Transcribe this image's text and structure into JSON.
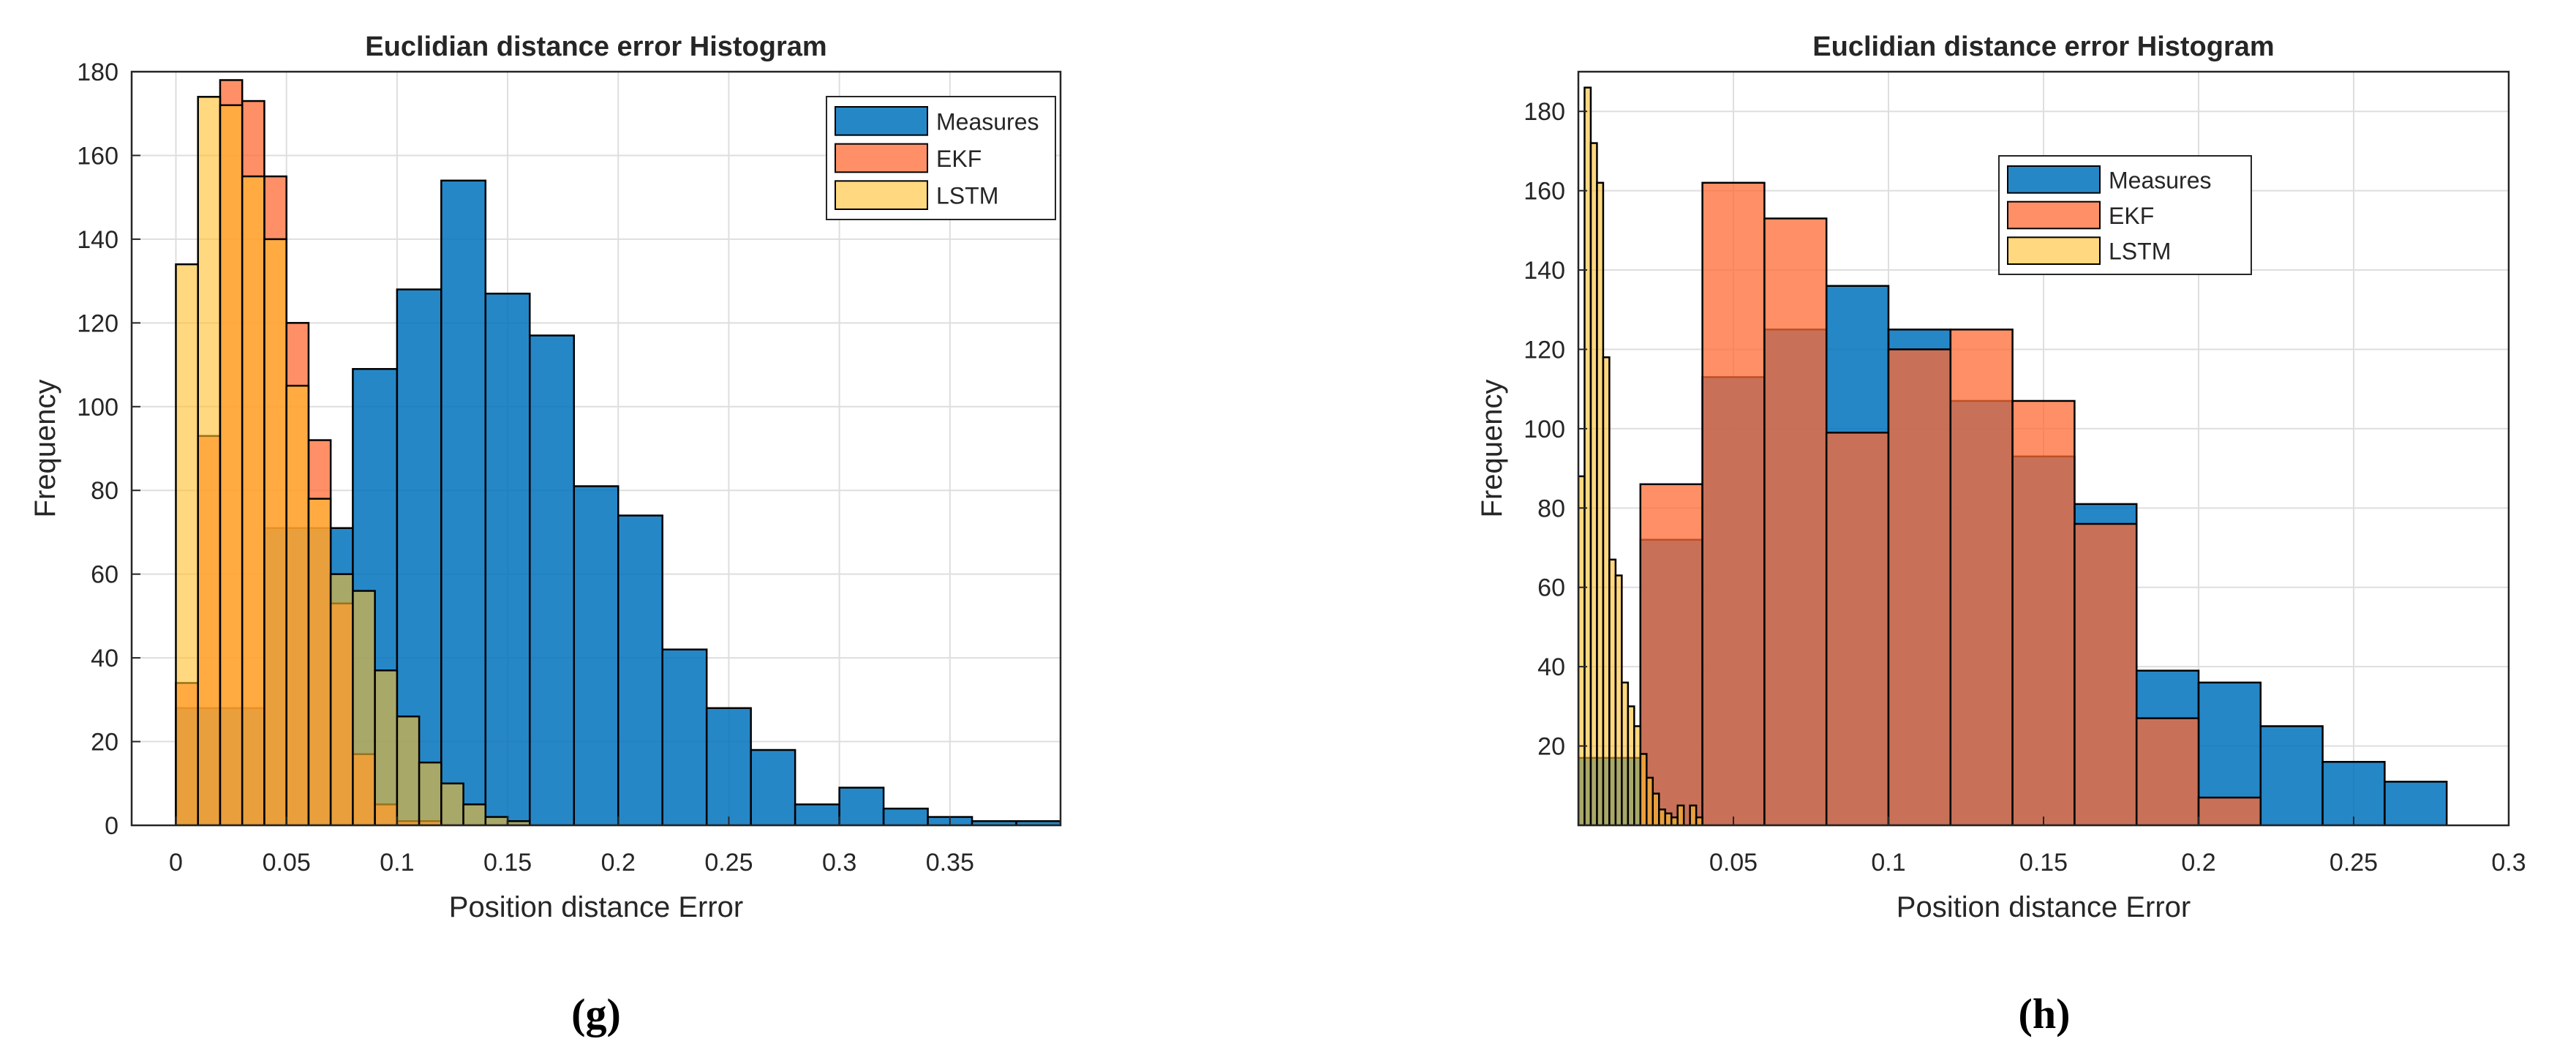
{
  "colors": {
    "measures": "#0072BD",
    "ekf": "#FF6A33",
    "lstm": "#FFBE2A",
    "grid": "#dedede",
    "axis": "#262626",
    "bar_edge": "#000000",
    "text": "#262626"
  },
  "chart_data": [
    {
      "type": "bar",
      "caption": "(g)",
      "title": "Euclidian distance error Histogram",
      "xlabel": "Position distance Error",
      "ylabel": "Frequency",
      "xlim": [
        -0.02,
        0.4
      ],
      "ylim": [
        0,
        180
      ],
      "grid": true,
      "legend_position": "top-right",
      "xticks": [
        0,
        0.05,
        0.1,
        0.15,
        0.2,
        0.25,
        0.3,
        0.35
      ],
      "xtick_labels": [
        "0",
        "0.05",
        "0.1",
        "0.15",
        "0.2",
        "0.25",
        "0.3",
        "0.35"
      ],
      "yticks": [
        0,
        20,
        40,
        60,
        80,
        100,
        120,
        140,
        160,
        180
      ],
      "ytick_labels": [
        "0",
        "20",
        "40",
        "60",
        "80",
        "100",
        "120",
        "140",
        "160",
        "180"
      ],
      "series": [
        {
          "name": "Measures",
          "color_key": "measures",
          "alpha": 0.85,
          "bin_start": 0.0,
          "bin_width": 0.02,
          "values": [
            28,
            28,
            71,
            71,
            109,
            128,
            154,
            127,
            117,
            81,
            74,
            42,
            28,
            18,
            5,
            9,
            4,
            2,
            1,
            1
          ]
        },
        {
          "name": "EKF",
          "color_key": "ekf",
          "alpha": 0.75,
          "bin_start": 0.0,
          "bin_width": 0.01,
          "values": [
            34,
            93,
            178,
            173,
            155,
            120,
            92,
            53,
            17,
            5,
            1,
            1,
            0,
            0,
            0,
            0
          ]
        },
        {
          "name": "LSTM",
          "color_key": "lstm",
          "alpha": 0.6,
          "bin_start": 0.0,
          "bin_width": 0.01,
          "values": [
            134,
            174,
            172,
            155,
            140,
            105,
            78,
            60,
            56,
            37,
            26,
            15,
            10,
            5,
            2,
            1
          ]
        }
      ]
    },
    {
      "type": "bar",
      "caption": "(h)",
      "title": "Euclidian distance error Histogram",
      "xlabel": "Position distance Error",
      "ylabel": "Frequency",
      "xlim": [
        0,
        0.3
      ],
      "ylim": [
        0,
        190
      ],
      "grid": true,
      "legend_position": "top-center",
      "xticks": [
        0.05,
        0.1,
        0.15,
        0.2,
        0.25,
        0.3
      ],
      "xtick_labels": [
        "0.05",
        "0.1",
        "0.15",
        "0.2",
        "0.25",
        "0.3"
      ],
      "yticks": [
        20,
        40,
        60,
        80,
        100,
        120,
        140,
        160,
        180
      ],
      "ytick_labels": [
        "20",
        "40",
        "60",
        "80",
        "100",
        "120",
        "140",
        "160",
        "180"
      ],
      "series": [
        {
          "name": "Measures",
          "color_key": "measures",
          "alpha": 0.85,
          "bin_start": 0.0,
          "bin_width": 0.02,
          "values": [
            17,
            72,
            113,
            125,
            136,
            125,
            107,
            93,
            81,
            39,
            36,
            25,
            16,
            11
          ]
        },
        {
          "name": "EKF",
          "color_key": "ekf",
          "alpha": 0.75,
          "bin_start": 0.0,
          "bin_width": 0.02,
          "values": [
            0,
            86,
            162,
            153,
            99,
            120,
            125,
            107,
            76,
            27,
            7,
            0,
            0,
            0
          ]
        },
        {
          "name": "LSTM",
          "color_key": "lstm",
          "alpha": 0.6,
          "bin_start": 0.0,
          "bin_width": 0.002,
          "values": [
            88,
            186,
            172,
            162,
            118,
            67,
            63,
            36,
            30,
            25,
            18,
            12,
            8,
            4,
            3,
            2,
            5,
            0,
            5,
            2
          ]
        }
      ]
    }
  ]
}
